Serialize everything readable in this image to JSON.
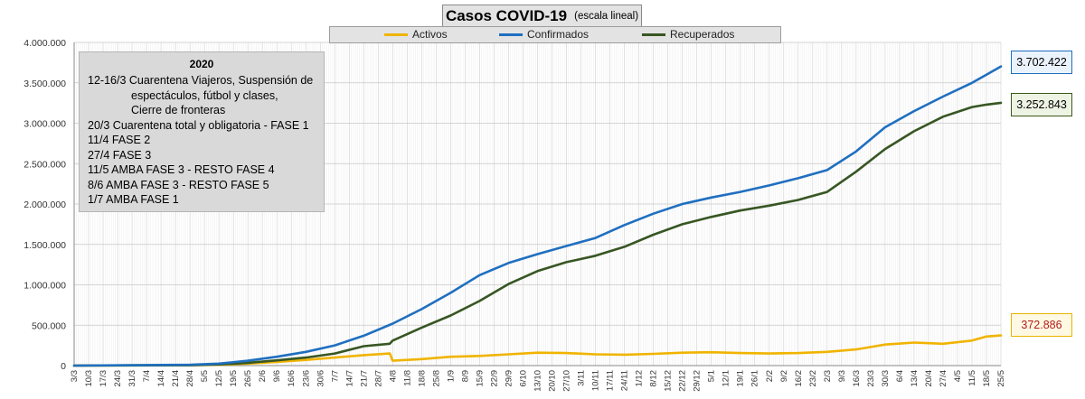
{
  "title": {
    "main": "Casos  COVID-19",
    "sub": "(escala lineal)"
  },
  "legend": [
    {
      "name": "Activos",
      "color": "#f0b400"
    },
    {
      "name": "Confirmados",
      "color": "#1f6fc0"
    },
    {
      "name": "Recuperados",
      "color": "#375623"
    }
  ],
  "notes": {
    "heading": "2020",
    "rows": [
      {
        "text": "12-16/3  Cuarentena Viajeros, Suspensión de",
        "indent": false
      },
      {
        "text": "espectáculos, fútbol y clases,",
        "indent": true
      },
      {
        "text": "Cierre de fronteras",
        "indent": true
      },
      {
        "text": "20/3 Cuarentena total y obligatoria - FASE 1",
        "indent": false
      },
      {
        "text": "11/4 FASE 2",
        "indent": false
      },
      {
        "text": "27/4 FASE 3",
        "indent": false
      },
      {
        "text": "11/5 AMBA FASE 3 - RESTO FASE 4",
        "indent": false
      },
      {
        "text": "8/6 AMBA FASE 3  - RESTO FASE 5",
        "indent": false
      },
      {
        "text": "1/7 AMBA FASE 1",
        "indent": false
      }
    ]
  },
  "value_labels": {
    "confirmados": "3.702.422",
    "recuperados": "3.252.843",
    "activos": "372.886"
  },
  "chart_data": {
    "type": "line",
    "title": "Casos  COVID-19 (escala lineal)",
    "ylim": [
      0,
      4000000
    ],
    "y_ticks": [
      "0",
      "500.000",
      "1.000.000",
      "1.500.000",
      "2.000.000",
      "2.500.000",
      "3.000.000",
      "3.500.000",
      "4.000.000"
    ],
    "x_ticks": [
      "3/3",
      "10/3",
      "17/3",
      "24/3",
      "31/3",
      "7/4",
      "14/4",
      "21/4",
      "28/4",
      "5/5",
      "12/5",
      "19/5",
      "26/5",
      "2/6",
      "9/6",
      "16/6",
      "23/6",
      "30/6",
      "7/7",
      "14/7",
      "21/7",
      "28/7",
      "4/8",
      "11/8",
      "18/8",
      "25/8",
      "1/9",
      "8/9",
      "15/9",
      "22/9",
      "29/9",
      "6/10",
      "13/10",
      "20/10",
      "27/10",
      "3/11",
      "10/11",
      "17/11",
      "24/11",
      "1/12",
      "8/12",
      "15/12",
      "22/12",
      "29/12",
      "5/1",
      "12/1",
      "19/1",
      "26/1",
      "2/2",
      "9/2",
      "16/2",
      "23/2",
      "2/3",
      "9/3",
      "16/3",
      "23/3",
      "30/3",
      "6/4",
      "13/4",
      "20/4",
      "27/4",
      "4/5",
      "11/5",
      "18/5",
      "25/5"
    ],
    "grid": true,
    "legend_position": "top",
    "series": [
      {
        "name": "Confirmados",
        "color": "#1f6fc0",
        "x": [
          0,
          8,
          10,
          12,
          14,
          16,
          18,
          20,
          22,
          24,
          26,
          28,
          30,
          32,
          34,
          36,
          38,
          40,
          42,
          44,
          46,
          48,
          50,
          52,
          54,
          56,
          58,
          60,
          62,
          63,
          64
        ],
        "values": [
          0,
          10000,
          25000,
          60000,
          110000,
          170000,
          250000,
          370000,
          520000,
          700000,
          900000,
          1120000,
          1270000,
          1380000,
          1480000,
          1580000,
          1740000,
          1880000,
          2000000,
          2080000,
          2150000,
          2230000,
          2320000,
          2420000,
          2650000,
          2950000,
          3150000,
          3330000,
          3500000,
          3600000,
          3702422
        ]
      },
      {
        "name": "Recuperados",
        "color": "#375623",
        "x": [
          0,
          8,
          10,
          12,
          14,
          16,
          18,
          20,
          21.8,
          22,
          24,
          26,
          28,
          30,
          32,
          34,
          36,
          38,
          40,
          42,
          44,
          46,
          48,
          50,
          52,
          54,
          56,
          58,
          60,
          62,
          63,
          64
        ],
        "values": [
          0,
          5000,
          15000,
          35000,
          65000,
          100000,
          150000,
          240000,
          270000,
          310000,
          470000,
          620000,
          800000,
          1010000,
          1170000,
          1280000,
          1360000,
          1470000,
          1620000,
          1750000,
          1840000,
          1920000,
          1980000,
          2050000,
          2150000,
          2400000,
          2680000,
          2900000,
          3080000,
          3200000,
          3230000,
          3252843
        ]
      },
      {
        "name": "Activos",
        "color": "#f0b400",
        "x": [
          0,
          8,
          10,
          12,
          14,
          16,
          18,
          20,
          21.8,
          22,
          24,
          26,
          28,
          30,
          32,
          34,
          36,
          38,
          40,
          42,
          44,
          46,
          48,
          50,
          52,
          54,
          56,
          58,
          60,
          62,
          63,
          64
        ],
        "values": [
          0,
          5000,
          10000,
          25000,
          45000,
          70000,
          100000,
          130000,
          150000,
          60000,
          80000,
          110000,
          120000,
          140000,
          160000,
          155000,
          140000,
          135000,
          145000,
          160000,
          165000,
          155000,
          150000,
          155000,
          170000,
          200000,
          260000,
          285000,
          270000,
          310000,
          360000,
          372886
        ]
      }
    ]
  }
}
